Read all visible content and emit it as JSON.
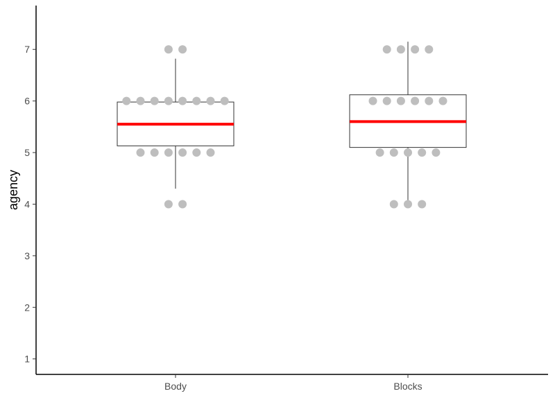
{
  "chart_data": {
    "type": "boxplot",
    "title": "",
    "xlabel": "",
    "ylabel": "agency",
    "ylim": [
      0.7,
      7.85
    ],
    "y_ticks": [
      1,
      2,
      3,
      4,
      5,
      6,
      7
    ],
    "categories": [
      "Body",
      "Blocks"
    ],
    "grid": false,
    "legend": "none",
    "colors": {
      "median": "#ff0000",
      "box_stroke": "#333333",
      "points": "#bebebe",
      "axis": "#000000"
    },
    "boxes": [
      {
        "category": "Body",
        "lower_whisker": 4.3,
        "q1": 5.13,
        "median": 5.55,
        "q3": 5.98,
        "upper_whisker": 6.82,
        "points": [
          {
            "y": 7,
            "count": 2
          },
          {
            "y": 6,
            "count": 8
          },
          {
            "y": 5,
            "count": 6
          },
          {
            "y": 4,
            "count": 2
          }
        ]
      },
      {
        "category": "Blocks",
        "lower_whisker": 4.0,
        "q1": 5.1,
        "median": 5.6,
        "q3": 6.12,
        "upper_whisker": 7.15,
        "points": [
          {
            "y": 7,
            "count": 4
          },
          {
            "y": 6,
            "count": 6
          },
          {
            "y": 5,
            "count": 5
          },
          {
            "y": 4,
            "count": 3
          }
        ]
      }
    ]
  }
}
